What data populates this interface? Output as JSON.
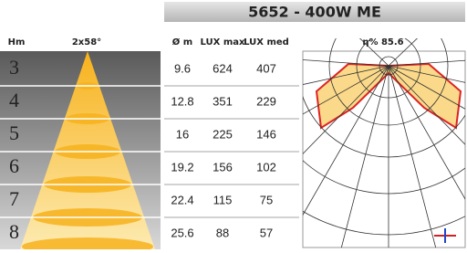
{
  "header": {
    "title": "5652 - 400W ME"
  },
  "columns": {
    "height": "Hm",
    "angle": "2x58°",
    "diameter": "Ø m",
    "lux_max": "LUX max",
    "lux_med": "LUX med"
  },
  "efficiency": "η% 85.6",
  "rows": [
    [
      3,
      9.6,
      624,
      407
    ],
    [
      4,
      12.8,
      351,
      229
    ],
    [
      5,
      16,
      225,
      146
    ],
    [
      6,
      19.2,
      156,
      102
    ],
    [
      7,
      22.4,
      115,
      75
    ],
    [
      8,
      25.6,
      88,
      57
    ]
  ]
}
